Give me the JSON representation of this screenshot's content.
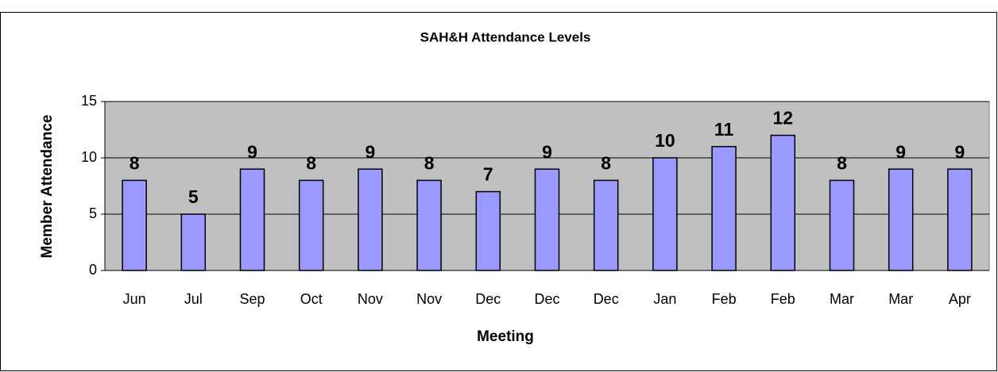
{
  "chart_data": {
    "type": "bar",
    "title": "SAH&H Attendance Levels",
    "x_label": "Meeting",
    "y_label": "Member Attendance",
    "categories": [
      "Jun",
      "Jul",
      "Sep",
      "Oct",
      "Nov",
      "Nov",
      "Dec",
      "Dec",
      "Dec",
      "Jan",
      "Feb",
      "Feb",
      "Mar",
      "Mar",
      "Apr"
    ],
    "values": [
      8,
      5,
      9,
      8,
      9,
      8,
      7,
      9,
      8,
      10,
      11,
      12,
      8,
      9,
      9
    ],
    "color": "#9999ff",
    "plot_background": "#c0c0c0",
    "ylim": [
      0,
      15
    ],
    "yticks": [
      0,
      5,
      10,
      15
    ],
    "grid": true
  }
}
